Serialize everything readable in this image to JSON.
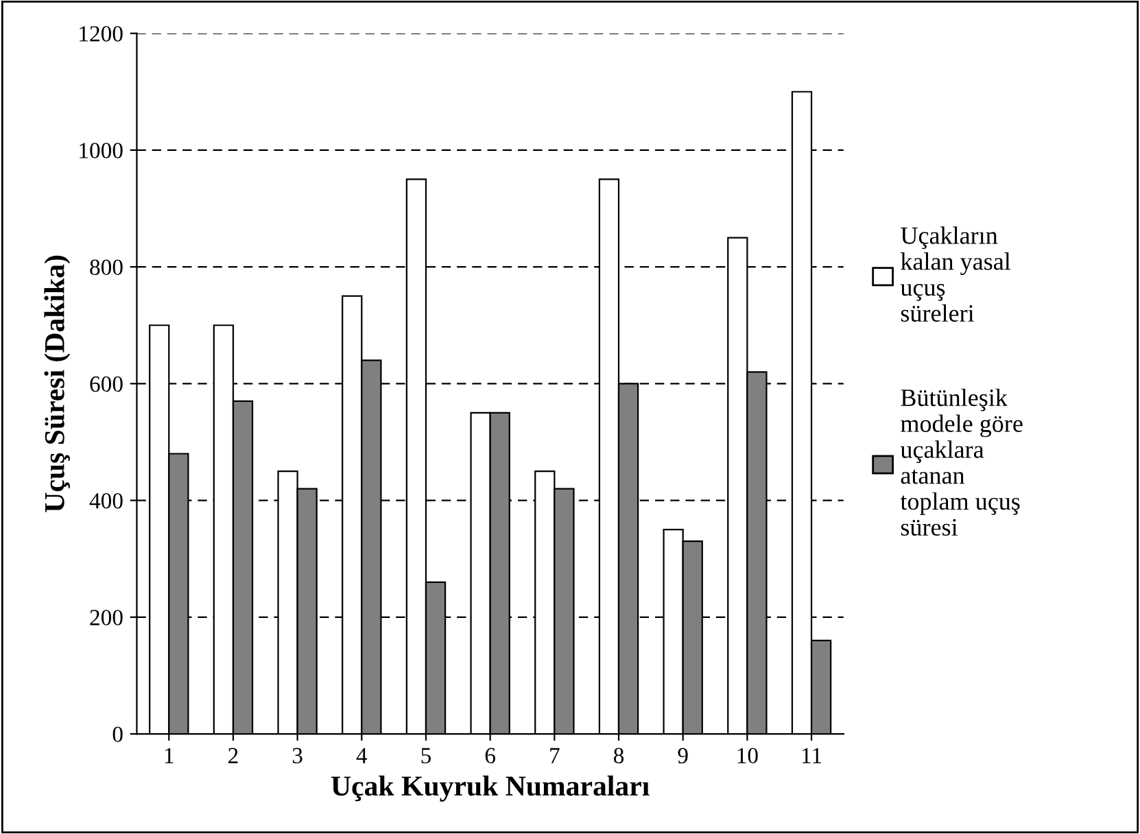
{
  "chart_data": {
    "type": "bar",
    "xlabel": "Uçak Kuyruk Numaraları",
    "ylabel": "Uçuş Süresi (Dakika)",
    "categories": [
      "1",
      "2",
      "3",
      "4",
      "5",
      "6",
      "7",
      "8",
      "9",
      "10",
      "11"
    ],
    "series": [
      {
        "name": "Uçakların kalan yasal uçuş süreleri",
        "color": "#ffffff",
        "values": [
          700,
          700,
          450,
          750,
          950,
          550,
          450,
          950,
          350,
          850,
          1100
        ]
      },
      {
        "name": "Bütünleşik modele göre uçaklara atanan toplam uçuş süresi",
        "color": "#808080",
        "values": [
          480,
          570,
          420,
          640,
          260,
          550,
          420,
          600,
          330,
          620,
          160
        ]
      }
    ],
    "ylim": [
      0,
      1200
    ],
    "yticks": [
      0,
      200,
      400,
      600,
      800,
      1000,
      1200
    ],
    "grid": "y",
    "legend": "right"
  }
}
